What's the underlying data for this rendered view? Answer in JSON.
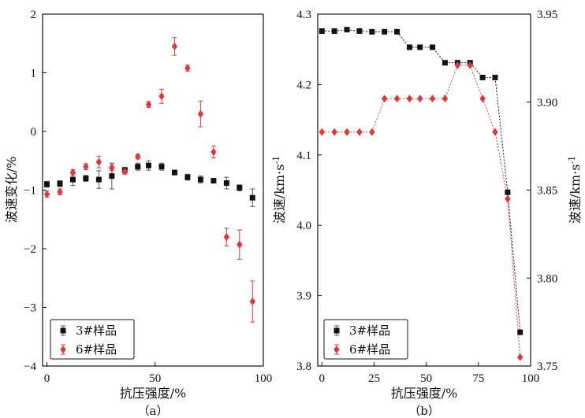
{
  "colors": {
    "s3": "#111111",
    "s6": "#d93a3a",
    "err": "#555555"
  },
  "chart_data": [
    {
      "type": "scatter",
      "panel_label": "（a）",
      "xlabel": "抗压强度/%",
      "ylabel": "波速变化/%",
      "xlim": [
        -2,
        100
      ],
      "ylim": [
        -4,
        2
      ],
      "xticks": [
        "0",
        "50",
        "100"
      ],
      "yticks": [
        "-4",
        "-3",
        "-2",
        "-1",
        "0",
        "1",
        "2"
      ],
      "legend": "bottom-left",
      "series": [
        {
          "name": "3#样品",
          "marker": "square",
          "x": [
            0,
            6,
            12,
            18,
            24,
            30,
            36,
            42,
            47,
            53,
            59,
            65,
            71,
            77,
            83,
            89,
            95
          ],
          "y": [
            -0.9,
            -0.89,
            -0.82,
            -0.8,
            -0.82,
            -0.76,
            -0.66,
            -0.6,
            -0.58,
            -0.6,
            -0.7,
            -0.78,
            -0.82,
            -0.84,
            -0.88,
            -0.96,
            -1.13
          ],
          "err": [
            0.05,
            0.05,
            0.1,
            0.05,
            0.15,
            0.22,
            0.05,
            0.06,
            0.08,
            0.06,
            0.04,
            0.05,
            0.06,
            0.04,
            0.1,
            0.05,
            0.15
          ]
        },
        {
          "name": "6#样品",
          "marker": "diamond",
          "x": [
            0,
            6,
            12,
            18,
            24,
            30,
            36,
            42,
            47,
            53,
            59,
            65,
            71,
            77,
            83,
            89,
            95
          ],
          "y": [
            -1.07,
            -1.03,
            -0.7,
            -0.6,
            -0.52,
            -0.62,
            -0.68,
            -0.43,
            0.46,
            0.6,
            1.45,
            1.08,
            0.3,
            -0.35,
            -1.8,
            -1.93,
            -2.9
          ],
          "err": [
            0.05,
            0.05,
            0.05,
            0.05,
            0.1,
            0.05,
            0.05,
            0.04,
            0.05,
            0.12,
            0.15,
            0.05,
            0.22,
            0.1,
            0.15,
            0.25,
            0.35
          ]
        }
      ]
    },
    {
      "type": "line",
      "panel_label": "（b）",
      "xlabel": "抗压强度/%",
      "ylabel": "波速/km·s",
      "ylabel_sup": "-1",
      "ylabel_right": "波速/km·s",
      "ylabel_right_sup": "-1",
      "xlim": [
        -2,
        100
      ],
      "ylim": [
        3.8,
        4.3
      ],
      "ylim_right": [
        3.75,
        3.95
      ],
      "xticks": [
        "0",
        "25",
        "50",
        "75",
        "100"
      ],
      "yticks": [
        "3.8",
        "3.9",
        "4.0",
        "4.1",
        "4.2",
        "4.3"
      ],
      "yticks_right": [
        "3.75",
        "3.80",
        "3.85",
        "3.90",
        "3.95"
      ],
      "legend": "bottom-left",
      "series": [
        {
          "name": "3#样品",
          "marker": "square",
          "axis": "left",
          "x": [
            0,
            6,
            12,
            18,
            24,
            30,
            36,
            42,
            47,
            53,
            59,
            65,
            71,
            77,
            83,
            89,
            95
          ],
          "y": [
            4.276,
            4.276,
            4.278,
            4.276,
            4.275,
            4.275,
            4.275,
            4.253,
            4.253,
            4.253,
            4.231,
            4.231,
            4.231,
            4.21,
            4.21,
            4.047,
            3.848
          ]
        },
        {
          "name": "6#样品",
          "marker": "diamond",
          "axis": "right",
          "x": [
            0,
            6,
            12,
            18,
            24,
            30,
            36,
            42,
            47,
            53,
            59,
            65,
            71,
            77,
            83,
            89,
            95
          ],
          "y": [
            3.883,
            3.883,
            3.883,
            3.883,
            3.883,
            3.902,
            3.902,
            3.902,
            3.902,
            3.902,
            3.902,
            3.921,
            3.921,
            3.902,
            3.883,
            3.845,
            3.755
          ]
        }
      ]
    }
  ]
}
